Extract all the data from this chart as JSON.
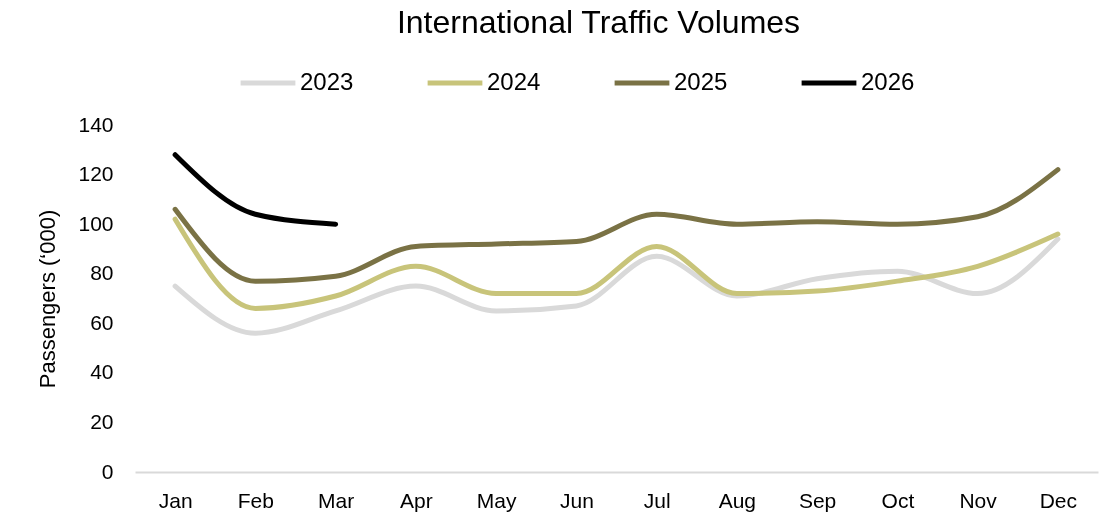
{
  "chart_data": {
    "type": "line",
    "title": "International Traffic Volumes",
    "ylabel": "Passengers (‘000)",
    "categories": [
      "Jan",
      "Feb",
      "Mar",
      "Apr",
      "May",
      "Jun",
      "Jul",
      "Aug",
      "Sep",
      "Oct",
      "Nov",
      "Dec"
    ],
    "series": [
      {
        "name": "2023",
        "color": "#d9d9d9",
        "values": [
          75,
          56,
          65,
          75,
          65,
          67,
          87,
          71,
          78,
          81,
          72,
          94
        ]
      },
      {
        "name": "2024",
        "color": "#c8c47a",
        "values": [
          102,
          66,
          71,
          83,
          72,
          72,
          91,
          72,
          73,
          77,
          83,
          96
        ]
      },
      {
        "name": "2025",
        "color": "#7a7245",
        "values": [
          106,
          77,
          79,
          91,
          92,
          93,
          104,
          100,
          101,
          100,
          103,
          122
        ]
      },
      {
        "name": "2026",
        "color": "#000000",
        "values": [
          128,
          104,
          100,
          null,
          null,
          null,
          null,
          null,
          null,
          null,
          null,
          null
        ]
      }
    ],
    "ylim": [
      0,
      140
    ],
    "yticks": [
      0,
      20,
      40,
      60,
      80,
      100,
      120,
      140
    ],
    "legend": "top"
  }
}
